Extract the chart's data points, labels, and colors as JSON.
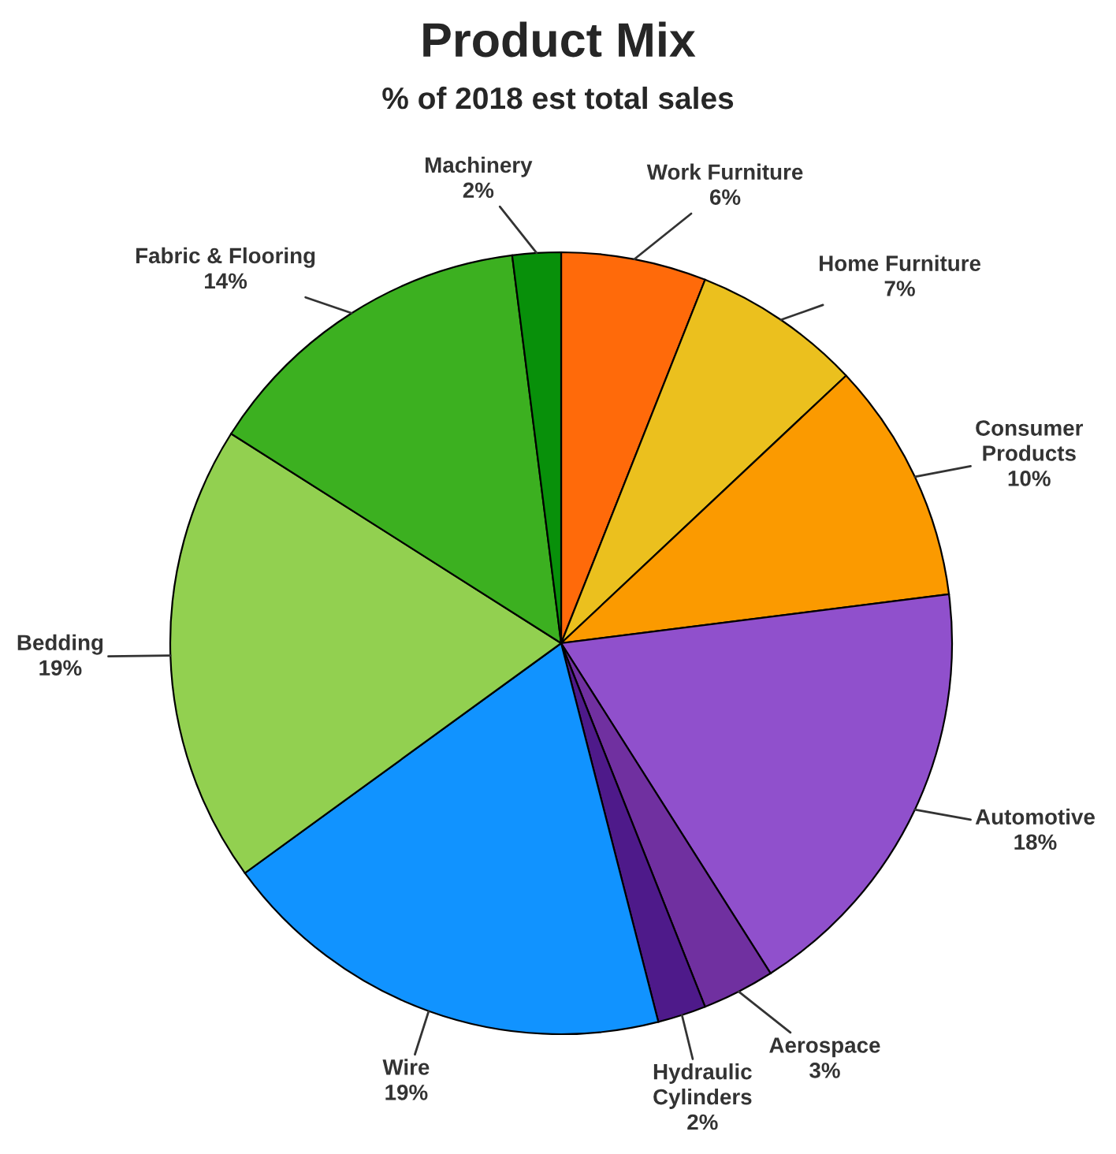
{
  "chart_data": {
    "type": "pie",
    "title": "Product Mix",
    "subtitle": "% of 2018 est total sales",
    "categories": [
      "Work Furniture",
      "Home Furniture",
      "Consumer\nProducts",
      "Automotive",
      "Aerospace",
      "Hydraulic\nCylinders",
      "Wire",
      "Bedding",
      "Fabric & Flooring",
      "Machinery"
    ],
    "values": [
      6,
      7,
      10,
      18,
      3,
      2,
      19,
      19,
      14,
      2
    ],
    "colors": [
      "#ff6a0a",
      "#ebc01e",
      "#fb9a00",
      "#9050cc",
      "#7030a0",
      "#4e1a8a",
      "#1193ff",
      "#92d050",
      "#3cb020",
      "#08900a"
    ],
    "value_labels": [
      "6%",
      "7%",
      "10%",
      "18%",
      "3%",
      "2%",
      "19%",
      "19%",
      "14%",
      "2%"
    ],
    "legend": false
  }
}
